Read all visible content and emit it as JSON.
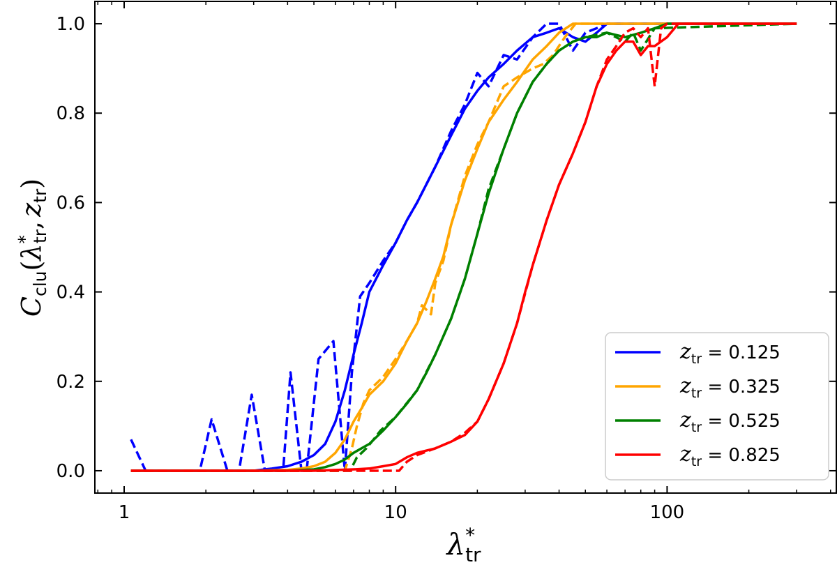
{
  "chart_data": {
    "type": "line",
    "title": "",
    "xlabel": "λ*_tr",
    "xlabel_main": "λ",
    "xlabel_sup": "*",
    "xlabel_sub": "tr",
    "ylabel": "C_clu(λ*_tr, z_tr)",
    "ylabel_parts": {
      "C": "C",
      "sub_clu": "clu",
      "open": "(",
      "lambda": "λ",
      "sup_star": "*",
      "sub_tr1": "tr",
      "comma": ",",
      "z": "z",
      "sub_tr2": "tr",
      "close": ")"
    },
    "xscale": "log",
    "xlim": [
      0.78,
      420
    ],
    "ylim": [
      -0.05,
      1.05
    ],
    "xticks": [
      1,
      10,
      100
    ],
    "xtick_labels": [
      "1",
      "10",
      "100"
    ],
    "yticks": [
      0.0,
      0.2,
      0.4,
      0.6,
      0.8,
      1.0
    ],
    "ytick_labels": [
      "0.0",
      "0.2",
      "0.4",
      "0.6",
      "0.8",
      "1.0"
    ],
    "legend_position": "bottom-right",
    "series": [
      {
        "name": "z_tr = 0.125",
        "legend_z": "z",
        "legend_sub": "tr",
        "legend_value": " = 0.125",
        "color": "#0000ff",
        "solid": {
          "x": [
            1.06,
            1.5,
            2,
            2.5,
            3,
            3.5,
            4,
            4.5,
            5,
            5.5,
            6,
            6.5,
            7,
            7.5,
            8,
            9,
            10,
            11,
            12,
            14,
            16,
            18,
            20,
            22,
            25,
            28,
            32,
            36,
            40,
            45,
            50,
            55,
            60,
            300
          ],
          "y": [
            0,
            0,
            0,
            0,
            0,
            0.005,
            0.01,
            0.02,
            0.035,
            0.06,
            0.11,
            0.18,
            0.26,
            0.33,
            0.4,
            0.46,
            0.51,
            0.56,
            0.6,
            0.68,
            0.75,
            0.81,
            0.85,
            0.88,
            0.91,
            0.94,
            0.97,
            0.98,
            0.99,
            0.97,
            0.96,
            0.98,
            1.0,
            1.0
          ]
        },
        "dashed": {
          "x": [
            1.06,
            1.2,
            1.9,
            2.1,
            2.4,
            2.65,
            2.95,
            3.3,
            3.85,
            4.1,
            4.5,
            4.7,
            5.2,
            5.9,
            6.5,
            6.9,
            7.4,
            8,
            9,
            10,
            11,
            12,
            14,
            16,
            18,
            20,
            22,
            25,
            28,
            32,
            36,
            40,
            45,
            50,
            55,
            60,
            300
          ],
          "y": [
            0.07,
            0,
            0,
            0.115,
            0,
            0,
            0.17,
            0,
            0,
            0.22,
            0,
            0,
            0.25,
            0.29,
            0,
            0.22,
            0.39,
            0.42,
            0.47,
            0.51,
            0.56,
            0.6,
            0.68,
            0.76,
            0.82,
            0.89,
            0.86,
            0.93,
            0.92,
            0.97,
            1.0,
            1.0,
            0.94,
            0.98,
            0.99,
            1.0,
            1.0
          ]
        }
      },
      {
        "name": "z_tr = 0.325",
        "legend_z": "z",
        "legend_sub": "tr",
        "legend_value": " = 0.325",
        "color": "#ffa500",
        "solid": {
          "x": [
            1.06,
            3,
            4,
            4.5,
            5,
            5.5,
            6,
            6.5,
            7,
            7.5,
            8,
            9,
            10,
            11,
            12,
            13,
            14,
            15,
            16,
            18,
            20,
            22,
            25,
            28,
            32,
            36,
            40,
            45,
            50,
            300
          ],
          "y": [
            0,
            0,
            0.002,
            0.005,
            0.01,
            0.02,
            0.04,
            0.07,
            0.11,
            0.14,
            0.17,
            0.2,
            0.24,
            0.29,
            0.33,
            0.38,
            0.43,
            0.48,
            0.55,
            0.65,
            0.72,
            0.78,
            0.83,
            0.87,
            0.92,
            0.95,
            0.98,
            1.0,
            1.0,
            1.0
          ]
        },
        "dashed": {
          "x": [
            1.06,
            6.5,
            6.9,
            7.2,
            7.6,
            8,
            9,
            10,
            11,
            12,
            12.5,
            13.5,
            14,
            15,
            16,
            18,
            20,
            22,
            25,
            28,
            32,
            35,
            38,
            42,
            46,
            300
          ],
          "y": [
            0,
            0,
            0.05,
            0.1,
            0.15,
            0.18,
            0.21,
            0.25,
            0.29,
            0.33,
            0.37,
            0.35,
            0.42,
            0.47,
            0.55,
            0.66,
            0.73,
            0.78,
            0.86,
            0.88,
            0.9,
            0.91,
            0.93,
            0.97,
            1.0,
            1.0
          ]
        }
      },
      {
        "name": "z_tr = 0.525",
        "legend_z": "z",
        "legend_sub": "tr",
        "legend_value": " = 0.525",
        "color": "#008000",
        "solid": {
          "x": [
            1.06,
            4,
            5,
            5.5,
            6,
            6.5,
            7,
            8,
            9,
            10,
            11,
            12,
            13,
            14,
            16,
            18,
            20,
            22,
            25,
            28,
            32,
            36,
            40,
            45,
            50,
            55,
            60,
            70,
            80,
            90,
            100,
            300
          ],
          "y": [
            0,
            0,
            0.003,
            0.008,
            0.015,
            0.025,
            0.04,
            0.06,
            0.09,
            0.12,
            0.15,
            0.18,
            0.22,
            0.26,
            0.34,
            0.43,
            0.53,
            0.62,
            0.72,
            0.8,
            0.87,
            0.91,
            0.94,
            0.96,
            0.97,
            0.97,
            0.98,
            0.97,
            0.98,
            0.99,
            1.0,
            1.0
          ]
        },
        "dashed": {
          "x": [
            1.06,
            6.8,
            7.2,
            7.8,
            8.3,
            8.8,
            10,
            12,
            14,
            16,
            18,
            20,
            22,
            25,
            28,
            32,
            36,
            40,
            45,
            50,
            60,
            70,
            75,
            80,
            90,
            300
          ],
          "y": [
            0,
            0,
            0.03,
            0.05,
            0.07,
            0.09,
            0.12,
            0.18,
            0.26,
            0.34,
            0.43,
            0.53,
            0.63,
            0.72,
            0.8,
            0.87,
            0.91,
            0.94,
            0.96,
            0.97,
            0.98,
            0.96,
            0.98,
            0.94,
            0.99,
            1.0
          ]
        }
      },
      {
        "name": "z_tr = 0.825",
        "legend_z": "z",
        "legend_sub": "tr",
        "legend_value": " = 0.825",
        "color": "#ff0000",
        "solid": {
          "x": [
            1.06,
            5,
            7,
            8,
            9,
            10,
            11,
            12,
            14,
            16,
            18,
            20,
            22,
            25,
            28,
            30,
            32,
            36,
            40,
            45,
            50,
            55,
            60,
            65,
            70,
            75,
            80,
            85,
            90,
            100,
            110,
            300
          ],
          "y": [
            0,
            0,
            0.003,
            0.005,
            0.01,
            0.015,
            0.03,
            0.04,
            0.05,
            0.065,
            0.08,
            0.11,
            0.16,
            0.24,
            0.33,
            0.4,
            0.46,
            0.56,
            0.64,
            0.71,
            0.78,
            0.86,
            0.91,
            0.94,
            0.96,
            0.96,
            0.93,
            0.95,
            0.95,
            0.97,
            1.0,
            1.0
          ]
        },
        "dashed": {
          "x": [
            1.06,
            10.3,
            11,
            12,
            14,
            16,
            18,
            20,
            22,
            25,
            28,
            32,
            36,
            40,
            45,
            50,
            55,
            60,
            65,
            70,
            75,
            80,
            85,
            90,
            95,
            100,
            300
          ],
          "y": [
            0,
            0,
            0.02,
            0.035,
            0.05,
            0.065,
            0.085,
            0.11,
            0.16,
            0.24,
            0.33,
            0.46,
            0.56,
            0.64,
            0.71,
            0.78,
            0.86,
            0.92,
            0.95,
            0.98,
            0.99,
            0.97,
            0.99,
            0.86,
            0.99,
            1.0,
            1.0
          ]
        }
      }
    ]
  }
}
